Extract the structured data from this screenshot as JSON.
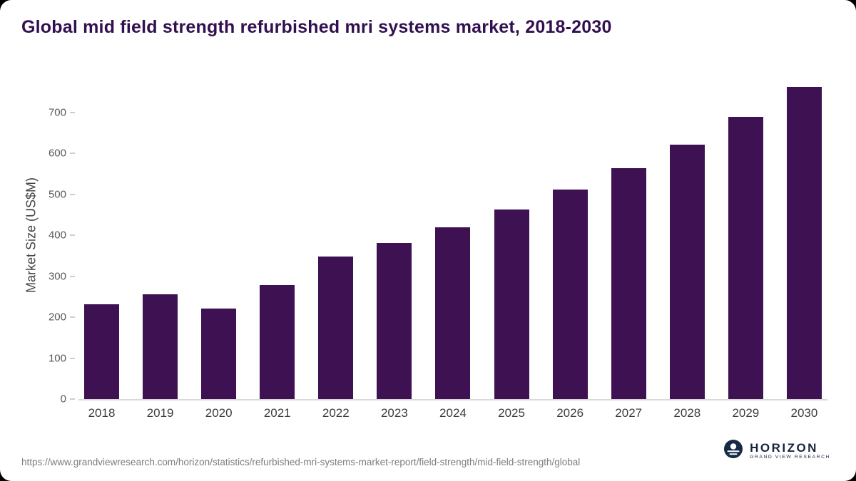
{
  "title": "Global mid field strength refurbished mri systems market, 2018-2030",
  "chart_data": {
    "type": "bar",
    "title": "Global mid field strength refurbished mri systems market, 2018-2030",
    "categories": [
      "2018",
      "2019",
      "2020",
      "2021",
      "2022",
      "2023",
      "2024",
      "2025",
      "2026",
      "2027",
      "2028",
      "2029",
      "2030"
    ],
    "values": [
      232,
      256,
      221,
      279,
      347,
      381,
      420,
      463,
      511,
      563,
      621,
      688,
      762
    ],
    "xlabel": "",
    "ylabel": "Market Size (US$M)",
    "ylim": [
      0,
      800
    ],
    "yticks": [
      0,
      100,
      200,
      300,
      400,
      500,
      600,
      700
    ],
    "grid": false,
    "legend": "none",
    "bar_color": "#3d1152"
  },
  "colors": {
    "title": "#32104f",
    "bar": "#3d1152",
    "axis_text": "#595959",
    "baseline": "#d9d9d9",
    "footer_text": "#7d7d7d",
    "logo_navy": "#16253f"
  },
  "footer": {
    "source_url": "https://www.grandviewresearch.com/horizon/statistics/refurbished-mri-systems-market-report/field-strength/mid-field-strength/global",
    "logo": {
      "name": "HORIZON",
      "subtitle": "GRAND VIEW RESEARCH"
    }
  }
}
